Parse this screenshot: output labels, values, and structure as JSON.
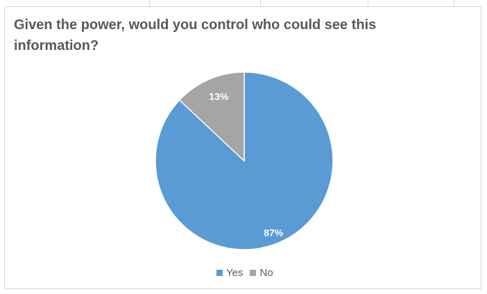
{
  "chart_data": {
    "type": "pie",
    "title": "Given the power, would you control who could see this information?",
    "categories": [
      "Yes",
      "No"
    ],
    "values": [
      87,
      13
    ],
    "data_labels": [
      "87%",
      "13%"
    ],
    "colors": [
      "#5b9bd5",
      "#a5a5a5"
    ],
    "start_angle_deg": 0,
    "direction": "clockwise",
    "legend_position": "bottom"
  }
}
